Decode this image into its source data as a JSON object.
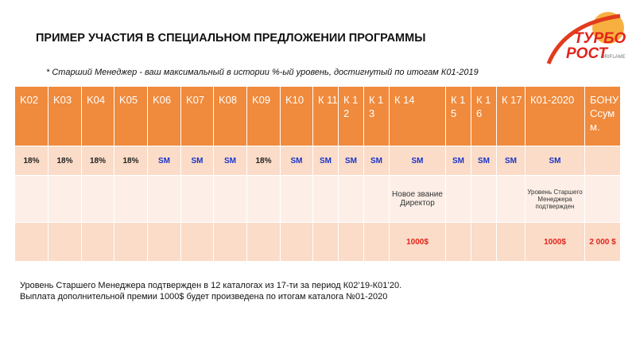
{
  "title": "ПРИМЕР УЧАСТИЯ В СПЕЦИАЛЬНОМ ПРЕДЛОЖЕНИИ ПРОГРАММЫ",
  "logo": {
    "line1": "ТУРБО",
    "line2": "РОСТ",
    "brand": "ORIFLAME"
  },
  "note": "* Старший Менеджер - ваш максимальный в истории %-ый уровень, достигнутый по итогам К01-2019",
  "table": {
    "header": [
      "K02",
      "K03",
      "K04",
      "K05",
      "K06",
      "K07",
      "K08",
      "K09",
      "K10",
      "К 11",
      "К 12",
      "К 13",
      "К 14",
      "К 15",
      "К 16",
      "К 17",
      "К01-2020",
      "БОНУСсумм."
    ],
    "rows": [
      [
        "18%",
        "18%",
        "18%",
        "18%",
        "SM",
        "SM",
        "SM",
        "18%",
        "SM",
        "SM",
        "SM",
        "SM",
        "SM",
        "SM",
        "SM",
        "SM",
        "SM",
        null
      ],
      [
        null,
        null,
        null,
        null,
        null,
        null,
        null,
        null,
        null,
        null,
        null,
        null,
        "Новое звание Директор",
        null,
        null,
        null,
        "Уровень Старшего Менеджера подтвержден",
        null
      ],
      [
        null,
        null,
        null,
        null,
        null,
        null,
        null,
        null,
        null,
        null,
        null,
        null,
        "1000$",
        null,
        null,
        null,
        "1000$",
        "2 000 $"
      ]
    ]
  },
  "footer": [
    "Уровень Старшего Менеджера подтвержден в 12 каталогах из 17-ти за период К02’19-К01’20.",
    "Выплата дополнительной премии 1000$  будет произведена по итогам каталога №01-2020"
  ]
}
